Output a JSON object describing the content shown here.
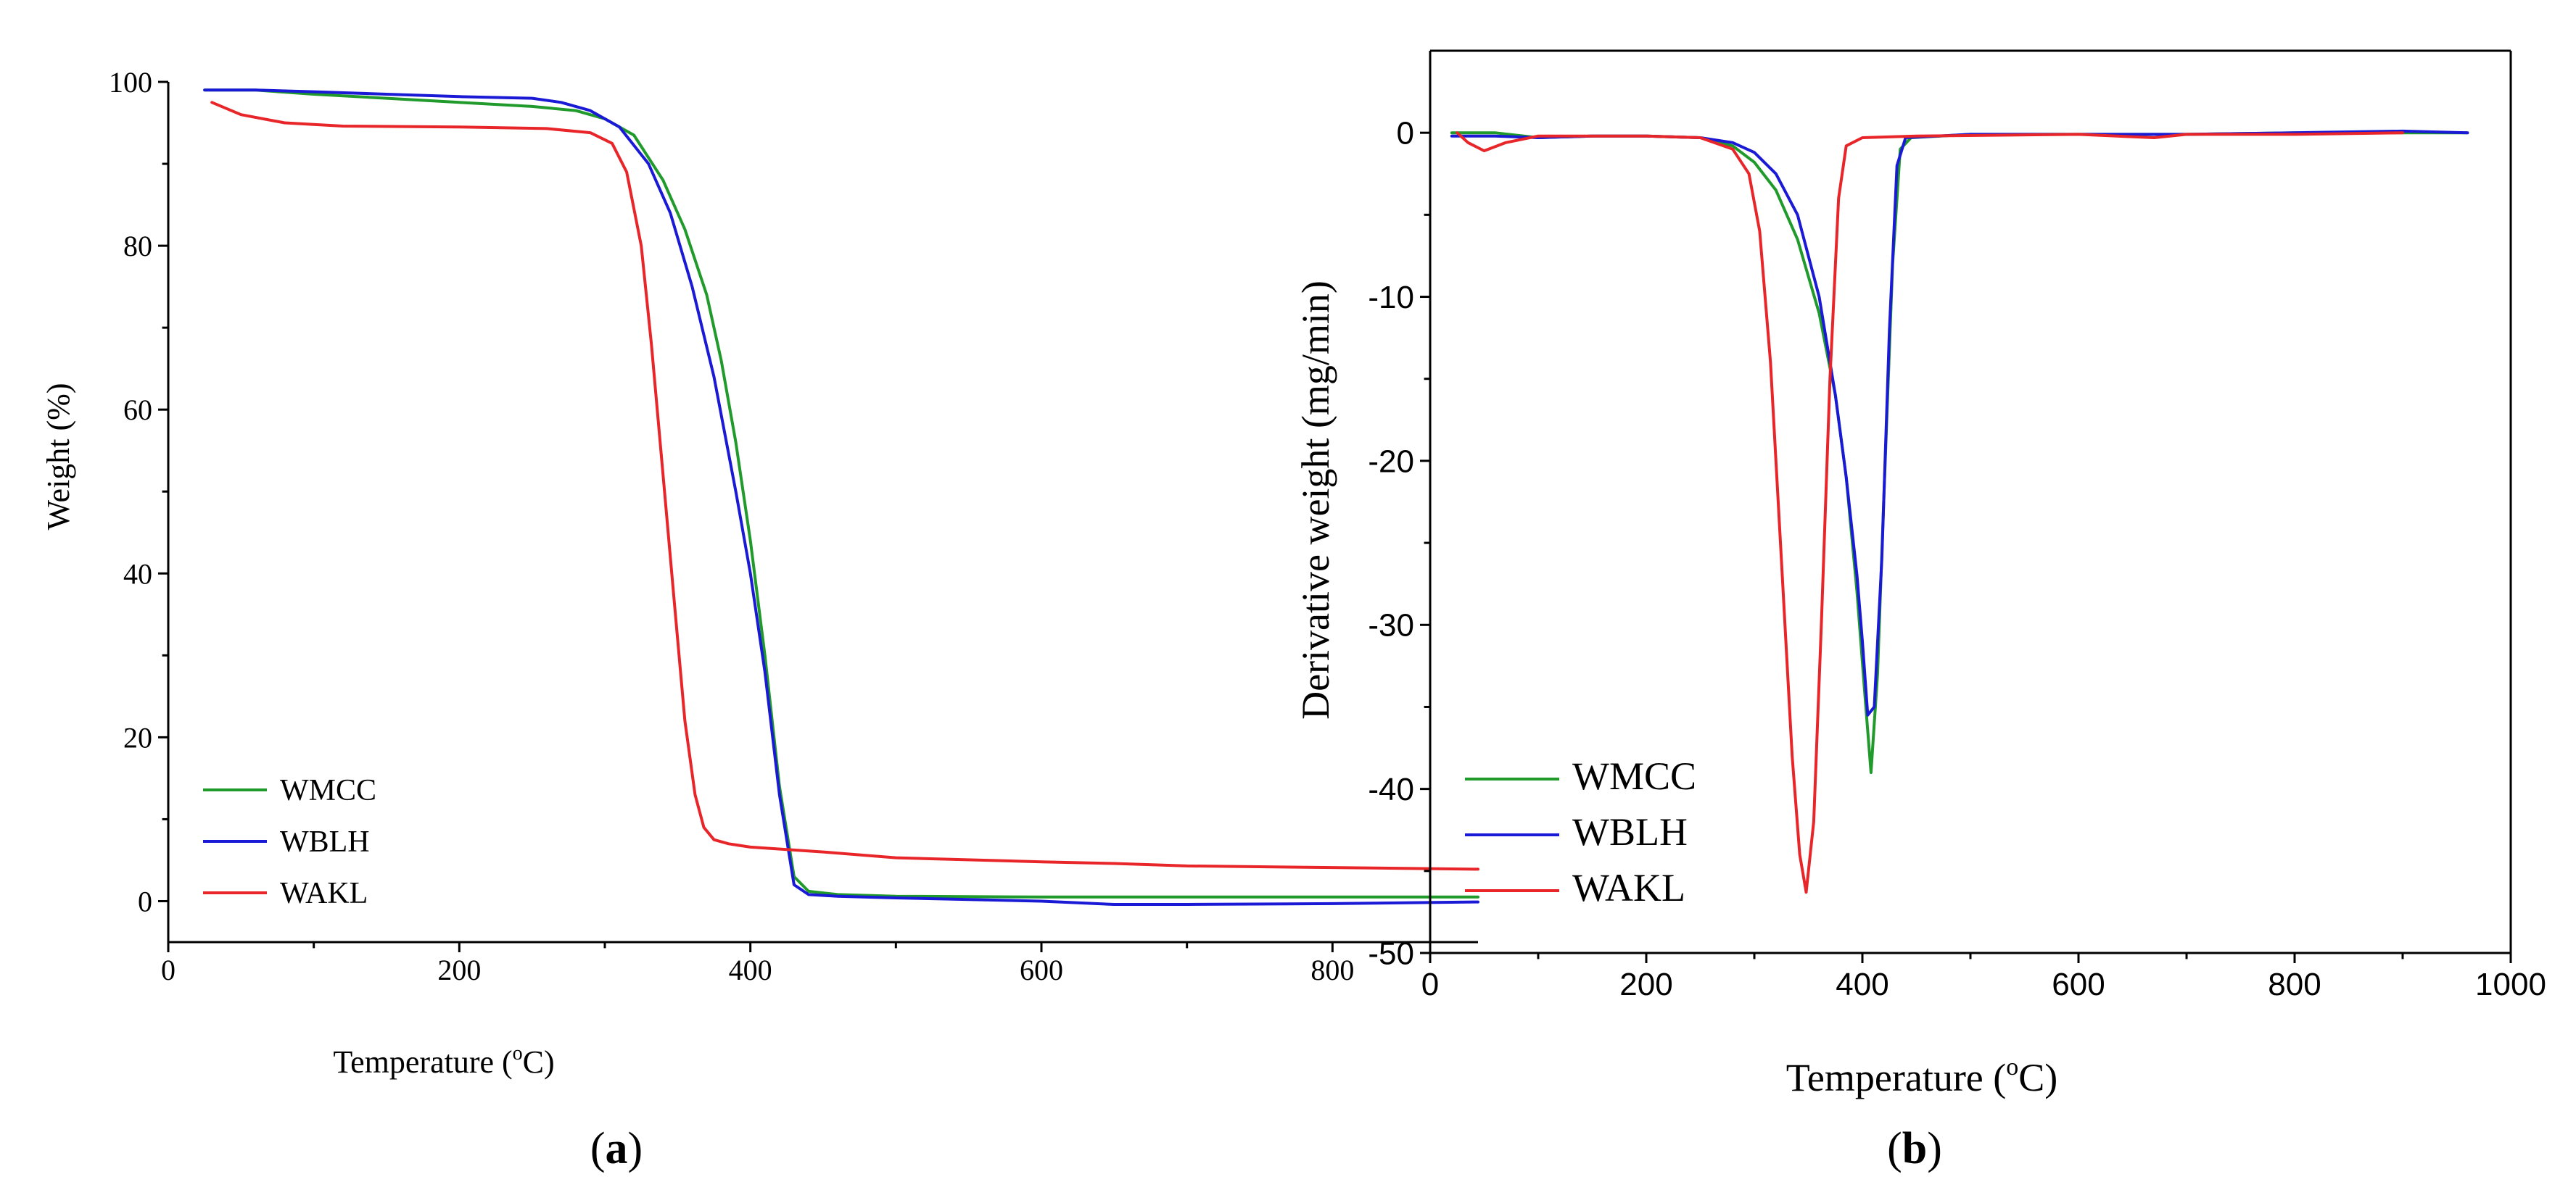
{
  "chart_data": [
    {
      "id": "a",
      "type": "line",
      "panel_label": "a",
      "title": "",
      "xlabel": "Temperature (",
      "xlabel_sup": "o",
      "xlabel_tail": "C)",
      "ylabel": "Weight (%)",
      "xlim": [
        0,
        900
      ],
      "ylim": [
        -5,
        100
      ],
      "xticks": [
        0,
        200,
        400,
        600,
        800
      ],
      "yticks": [
        0,
        20,
        40,
        60,
        80,
        100
      ],
      "legend": "bottom-left",
      "series": [
        {
          "name": "WMCC",
          "color": "#1f9a2b",
          "x": [
            25,
            60,
            100,
            150,
            200,
            250,
            280,
            300,
            320,
            340,
            355,
            370,
            380,
            390,
            400,
            410,
            420,
            430,
            440,
            460,
            500,
            600,
            700,
            800,
            900
          ],
          "y": [
            99,
            99,
            98.5,
            98,
            97.5,
            97,
            96.5,
            95.5,
            93.5,
            88,
            82,
            74,
            66,
            56,
            44,
            30,
            14,
            3,
            1.2,
            0.8,
            0.6,
            0.5,
            0.5,
            0.5,
            0.5
          ]
        },
        {
          "name": "WBLH",
          "color": "#1a1ad6",
          "x": [
            25,
            60,
            100,
            150,
            200,
            250,
            270,
            290,
            310,
            330,
            345,
            360,
            375,
            390,
            400,
            410,
            420,
            430,
            440,
            460,
            500,
            600,
            650,
            700,
            800,
            900
          ],
          "y": [
            99,
            99,
            98.8,
            98.5,
            98.2,
            98,
            97.5,
            96.5,
            94.5,
            90,
            84,
            75,
            64,
            50,
            40,
            28,
            13,
            2,
            0.8,
            0.6,
            0.4,
            0,
            -0.4,
            -0.4,
            -0.3,
            -0.1
          ]
        },
        {
          "name": "WAKL",
          "color": "#e8262a",
          "x": [
            30,
            50,
            80,
            120,
            200,
            260,
            290,
            305,
            315,
            325,
            332,
            340,
            348,
            355,
            362,
            368,
            375,
            385,
            400,
            450,
            500,
            600,
            650,
            700,
            800,
            900
          ],
          "y": [
            97.5,
            96,
            95,
            94.6,
            94.5,
            94.3,
            93.8,
            92.5,
            89,
            80,
            68,
            52,
            36,
            22,
            13,
            9,
            7.5,
            7,
            6.6,
            6,
            5.3,
            4.8,
            4.6,
            4.3,
            4.1,
            3.9
          ]
        }
      ]
    },
    {
      "id": "b",
      "type": "line",
      "panel_label": "b",
      "title": "",
      "xlabel": "Temperature (",
      "xlabel_sup": "o",
      "xlabel_tail": "C)",
      "ylabel": "Derivative weight (mg/min)",
      "xlim": [
        0,
        1000
      ],
      "ylim": [
        -50,
        5
      ],
      "xticks": [
        0,
        200,
        400,
        600,
        800,
        1000
      ],
      "yticks": [
        0,
        -10,
        -20,
        -30,
        -40,
        -50
      ],
      "legend": "bottom-left",
      "series": [
        {
          "name": "WMCC",
          "color": "#1f9a2b",
          "x": [
            20,
            60,
            100,
            150,
            200,
            250,
            280,
            300,
            320,
            340,
            360,
            375,
            385,
            395,
            402,
            408,
            414,
            420,
            428,
            435,
            445,
            500,
            600,
            700,
            800,
            900,
            960
          ],
          "y": [
            0,
            0,
            -0.3,
            -0.2,
            -0.2,
            -0.3,
            -0.8,
            -1.8,
            -3.5,
            -6.5,
            -11,
            -16,
            -21,
            -28,
            -34,
            -39,
            -33,
            -22,
            -8,
            -1,
            -0.3,
            -0.1,
            -0.1,
            -0.1,
            0,
            0,
            0
          ]
        },
        {
          "name": "WBLH",
          "color": "#1a1ad6",
          "x": [
            20,
            60,
            100,
            150,
            200,
            250,
            280,
            300,
            320,
            340,
            360,
            375,
            385,
            395,
            400,
            405,
            411,
            418,
            425,
            432,
            440,
            500,
            600,
            700,
            800,
            900,
            960
          ],
          "y": [
            -0.2,
            -0.2,
            -0.3,
            -0.2,
            -0.2,
            -0.3,
            -0.6,
            -1.2,
            -2.5,
            -5,
            -10,
            -16,
            -21,
            -27,
            -31,
            -35.5,
            -35,
            -26,
            -12,
            -2,
            -0.3,
            -0.1,
            -0.1,
            -0.1,
            0,
            0.1,
            0
          ]
        },
        {
          "name": "WAKL",
          "color": "#e8262a",
          "x": [
            25,
            35,
            50,
            70,
            100,
            200,
            250,
            280,
            295,
            305,
            315,
            325,
            335,
            342,
            348,
            355,
            362,
            370,
            378,
            385,
            400,
            450,
            600,
            670,
            700,
            800,
            900
          ],
          "y": [
            0,
            -0.6,
            -1.1,
            -0.6,
            -0.2,
            -0.2,
            -0.3,
            -1,
            -2.5,
            -6,
            -14,
            -26,
            -38,
            -44,
            -46.3,
            -42,
            -30,
            -15,
            -4,
            -0.8,
            -0.3,
            -0.2,
            -0.1,
            -0.3,
            -0.1,
            -0.1,
            0
          ]
        }
      ]
    }
  ]
}
